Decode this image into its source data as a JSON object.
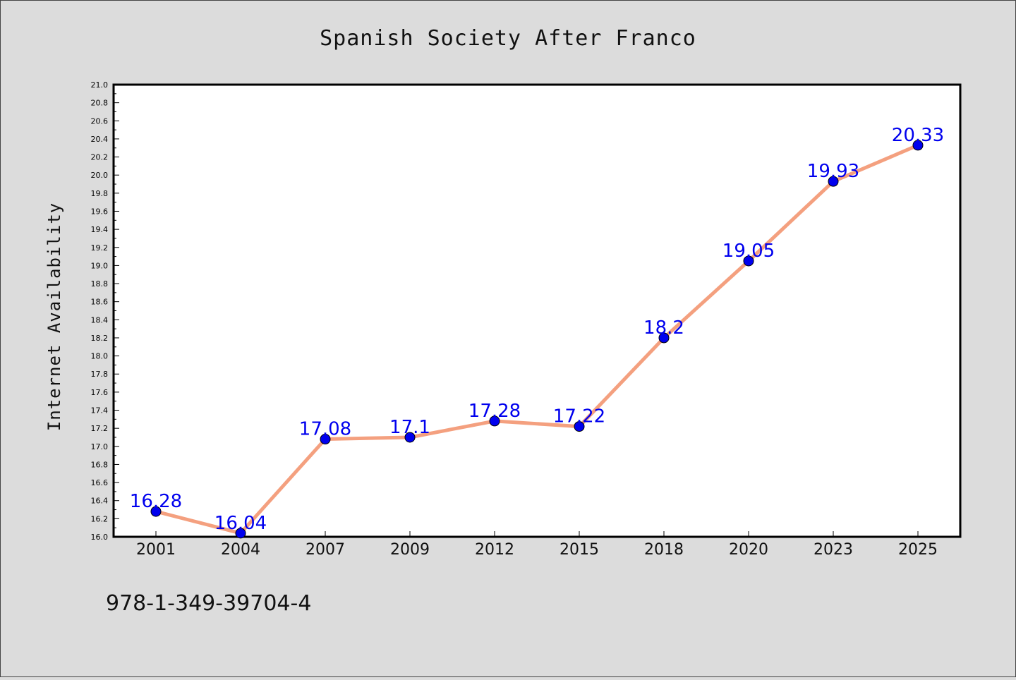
{
  "colors": {
    "background": "#dcdcdc",
    "plot_background": "#ffffff",
    "line": "#f4a07f",
    "marker": "#0000ee",
    "data_label": "#0000ee"
  },
  "identifier": "978-1-349-39704-4",
  "chart_data": {
    "type": "line",
    "title": "Spanish Society After Franco",
    "xlabel": "",
    "ylabel": "Internet Availability",
    "categories": [
      "2001",
      "2004",
      "2007",
      "2009",
      "2012",
      "2015",
      "2018",
      "2020",
      "2023",
      "2025"
    ],
    "series": [
      {
        "values": [
          16.28,
          16.04,
          17.08,
          17.1,
          17.28,
          17.22,
          18.2,
          19.05,
          19.93,
          20.33
        ],
        "labels": [
          "16.28",
          "16.04",
          "17.08",
          "17.1",
          "17.28",
          "17.22",
          "18.2",
          "19.05",
          "19.93",
          "20.33"
        ]
      }
    ],
    "ylim": [
      16.0,
      21.0
    ],
    "ytick_step": 0.2,
    "yticks": [
      "16.0",
      "16.2",
      "16.4",
      "16.6",
      "16.8",
      "17.0",
      "17.2",
      "17.4",
      "17.6",
      "17.8",
      "18.0",
      "18.2",
      "18.4",
      "18.6",
      "18.8",
      "19.0",
      "19.2",
      "19.4",
      "19.6",
      "19.8",
      "20.0",
      "20.2",
      "20.4",
      "20.6",
      "20.8",
      "21.0"
    ],
    "grid": false,
    "legend": "none"
  }
}
